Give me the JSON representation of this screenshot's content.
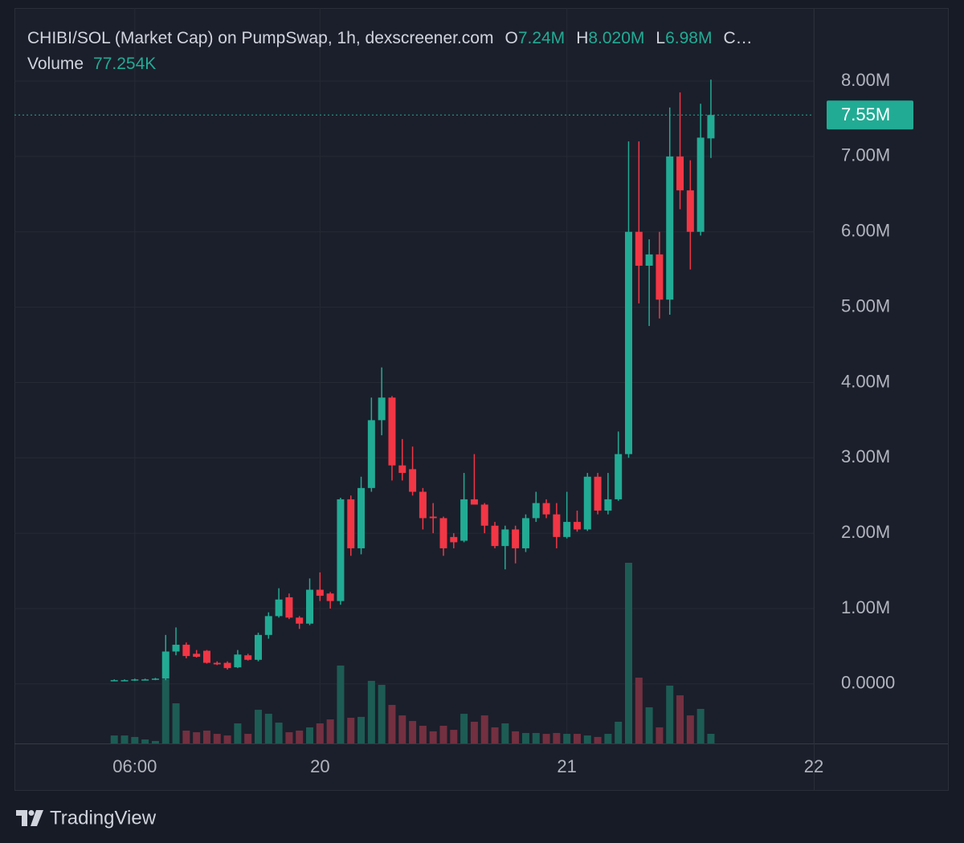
{
  "chart_data": {
    "type": "candlestick",
    "title": "CHIBI/SOL (Market Cap) on PumpSwap, 1h, dexscreener.com",
    "ohlc_legend": [
      {
        "key": "O",
        "value": "7.24M"
      },
      {
        "key": "H",
        "value": "8.020M"
      },
      {
        "key": "L",
        "value": "6.98M"
      }
    ],
    "ohlc_more": "C…",
    "volume_name": "Volume",
    "volume_label": "77.254K",
    "last_price_label": "7.55M",
    "brand": "TradingView",
    "x": [
      4,
      5,
      6,
      7,
      8,
      9,
      10,
      11,
      12,
      13,
      14,
      15,
      16,
      17,
      18,
      19,
      20,
      21,
      22,
      23,
      24,
      25,
      26,
      27,
      28,
      29,
      30,
      31,
      32,
      33,
      34,
      35,
      36,
      37,
      38,
      39,
      40,
      41,
      42,
      43,
      44,
      45,
      46,
      47,
      48,
      49,
      50,
      51,
      52,
      53,
      54,
      55,
      56,
      57,
      58,
      59,
      60,
      61,
      62
    ],
    "open": [
      0.05,
      0.05,
      0.05,
      0.06,
      0.06,
      0.07,
      0.43,
      0.52,
      0.4,
      0.44,
      0.28,
      0.28,
      0.22,
      0.38,
      0.32,
      0.65,
      0.9,
      1.15,
      0.88,
      0.8,
      1.25,
      1.2,
      1.1,
      2.45,
      1.8,
      2.6,
      3.5,
      3.8,
      2.9,
      2.85,
      2.55,
      2.22,
      2.2,
      1.95,
      1.9,
      2.45,
      2.38,
      2.1,
      1.83,
      2.05,
      1.8,
      2.2,
      2.4,
      2.25,
      1.95,
      2.15,
      2.05,
      2.75,
      2.3,
      2.45,
      3.05,
      6.0,
      5.55,
      5.7,
      5.1,
      7.0,
      6.55,
      6.0,
      7.24
    ],
    "high": [
      0.06,
      0.06,
      0.07,
      0.07,
      0.08,
      0.65,
      0.75,
      0.55,
      0.45,
      0.45,
      0.3,
      0.3,
      0.45,
      0.4,
      0.68,
      0.95,
      1.27,
      1.2,
      0.9,
      1.4,
      1.48,
      1.22,
      2.47,
      2.5,
      2.75,
      3.8,
      4.2,
      3.82,
      3.25,
      3.15,
      2.6,
      2.4,
      2.22,
      2.0,
      2.8,
      3.05,
      2.4,
      2.15,
      2.1,
      2.1,
      2.25,
      2.55,
      2.45,
      2.4,
      2.55,
      2.3,
      2.8,
      2.8,
      2.8,
      3.35,
      7.2,
      7.2,
      5.9,
      6.0,
      7.65,
      7.85,
      6.95,
      7.7,
      8.02
    ],
    "low": [
      0.04,
      0.04,
      0.04,
      0.05,
      0.05,
      0.05,
      0.38,
      0.34,
      0.35,
      0.27,
      0.25,
      0.19,
      0.21,
      0.31,
      0.3,
      0.6,
      0.88,
      0.86,
      0.73,
      0.78,
      1.1,
      1.0,
      1.05,
      1.7,
      1.72,
      2.55,
      3.3,
      2.7,
      2.7,
      2.5,
      2.05,
      2.0,
      1.7,
      1.8,
      1.88,
      2.38,
      2.0,
      1.8,
      1.52,
      1.6,
      1.75,
      2.15,
      2.2,
      1.8,
      1.93,
      2.02,
      2.03,
      2.25,
      2.25,
      2.43,
      3.0,
      5.05,
      4.75,
      4.85,
      4.9,
      6.3,
      5.5,
      5.95,
      6.98
    ],
    "close": [
      0.05,
      0.05,
      0.06,
      0.06,
      0.07,
      0.43,
      0.52,
      0.37,
      0.36,
      0.28,
      0.26,
      0.21,
      0.39,
      0.32,
      0.65,
      0.9,
      1.12,
      0.88,
      0.8,
      1.25,
      1.17,
      1.1,
      2.45,
      1.8,
      2.6,
      3.5,
      3.8,
      2.9,
      2.8,
      2.55,
      2.2,
      2.2,
      1.8,
      1.88,
      2.45,
      2.38,
      2.1,
      1.83,
      2.05,
      1.8,
      2.2,
      2.4,
      2.25,
      1.95,
      2.15,
      2.05,
      2.75,
      2.3,
      2.45,
      3.05,
      6.0,
      5.55,
      5.7,
      5.1,
      7.0,
      6.55,
      6.0,
      7.25,
      7.55
    ],
    "volume": [
      64000,
      64000,
      52000,
      32000,
      20000,
      515000,
      322000,
      103000,
      90000,
      103000,
      77000,
      64000,
      161000,
      77000,
      270000,
      238000,
      167000,
      90000,
      103000,
      129000,
      161000,
      193000,
      625000,
      206000,
      213000,
      502000,
      470000,
      309000,
      225000,
      180000,
      142000,
      97000,
      142000,
      109000,
      238000,
      174000,
      225000,
      129000,
      161000,
      97000,
      84000,
      84000,
      77000,
      84000,
      77000,
      77000,
      64000,
      52000,
      77000,
      174000,
      1449000,
      528000,
      290000,
      129000,
      464000,
      386000,
      225000,
      277000,
      77254
    ],
    "up_color": "#22ab94",
    "down_color": "#f23645",
    "volume_up_color": "#1d5c55",
    "volume_down_color": "#733040",
    "xlim": [
      -5.7,
      72
    ],
    "xticks": [
      {
        "value": 6,
        "label": "06:00"
      },
      {
        "value": 24,
        "label": "20"
      },
      {
        "value": 48,
        "label": "21"
      },
      {
        "value": 72,
        "label": "22"
      }
    ],
    "ylim": [
      -0.79,
      8.97
    ],
    "yticks": [
      {
        "value": 0,
        "label": "0.0000"
      },
      {
        "value": 1,
        "label": "1.00M"
      },
      {
        "value": 2,
        "label": "2.00M"
      },
      {
        "value": 3,
        "label": "3.00M"
      },
      {
        "value": 4,
        "label": "4.00M"
      },
      {
        "value": 5,
        "label": "5.00M"
      },
      {
        "value": 6,
        "label": "6.00M"
      },
      {
        "value": 7,
        "label": "7.00M"
      },
      {
        "value": 8,
        "label": "8.00M"
      }
    ],
    "grid": true
  }
}
